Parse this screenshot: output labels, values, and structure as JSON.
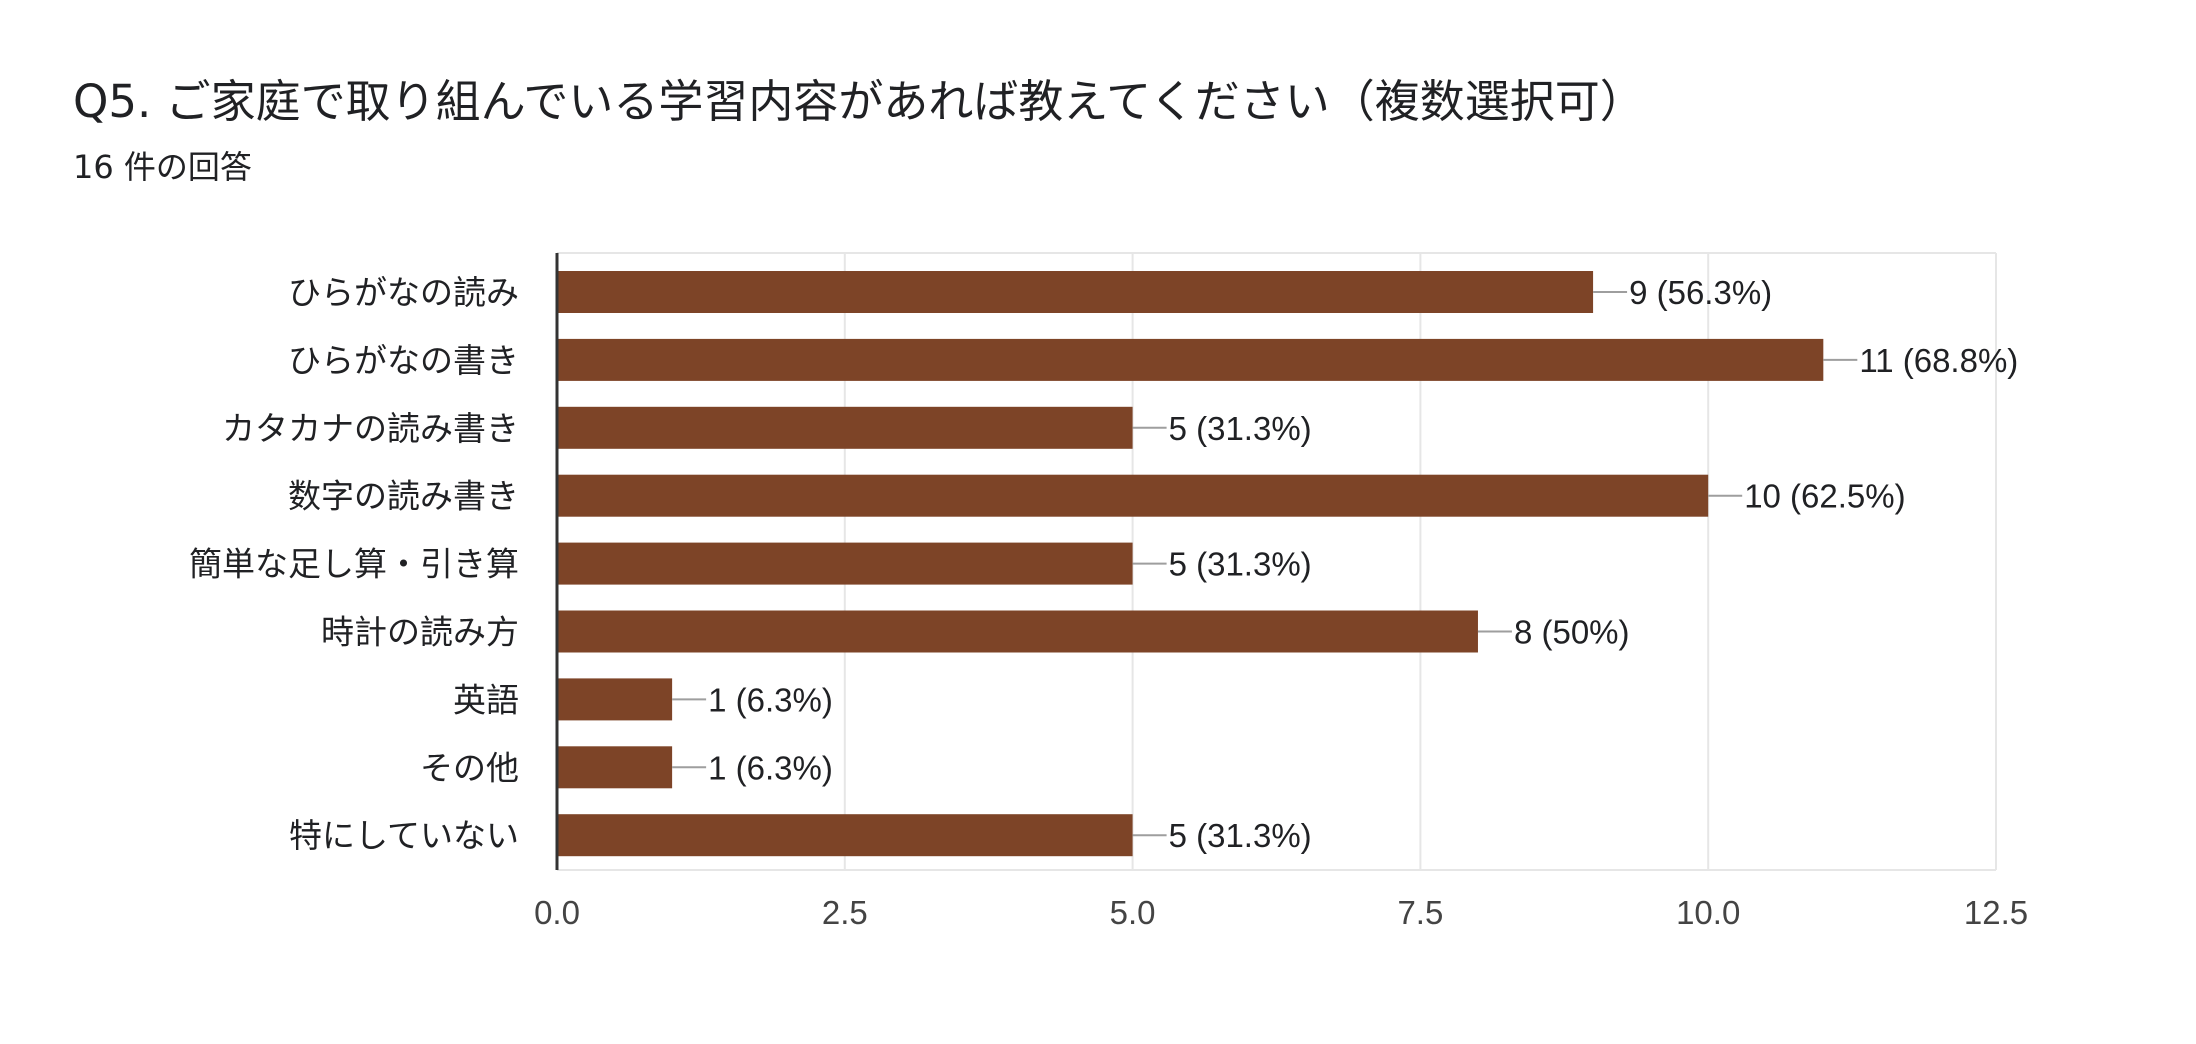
{
  "form": {
    "question_title": "Q5. ご家庭で取り組んでいる学習内容があれば教えてください（複数選択可）",
    "response_count": "16 件の回答"
  },
  "chart_data": {
    "type": "bar",
    "orientation": "horizontal",
    "categories": [
      "ひらがなの読み",
      "ひらがなの書き",
      "カタカナの読み書き",
      "数字の読み書き",
      "簡単な足し算・引き算",
      "時計の読み方",
      "英語",
      "その他",
      "特にしていない"
    ],
    "values": [
      9,
      11,
      5,
      10,
      5,
      8,
      1,
      1,
      5
    ],
    "value_labels": [
      "9 (56.3%)",
      "11 (68.8%)",
      "5 (31.3%)",
      "10 (62.5%)",
      "5 (31.3%)",
      "8 (50%)",
      "1 (6.3%)",
      "1 (6.3%)",
      "5 (31.3%)"
    ],
    "xlim": [
      0,
      12.5
    ],
    "x_ticks": [
      0,
      2.5,
      5,
      7.5,
      10,
      12.5
    ],
    "x_tick_labels": [
      "0.0",
      "2.5",
      "5.0",
      "7.5",
      "10.0",
      "12.5"
    ],
    "grid": true,
    "bar_color": "#7d4427",
    "leader_line_color": "#9e9e9e",
    "grid_color": "#e6e6e6",
    "axis_color": "#333333"
  }
}
